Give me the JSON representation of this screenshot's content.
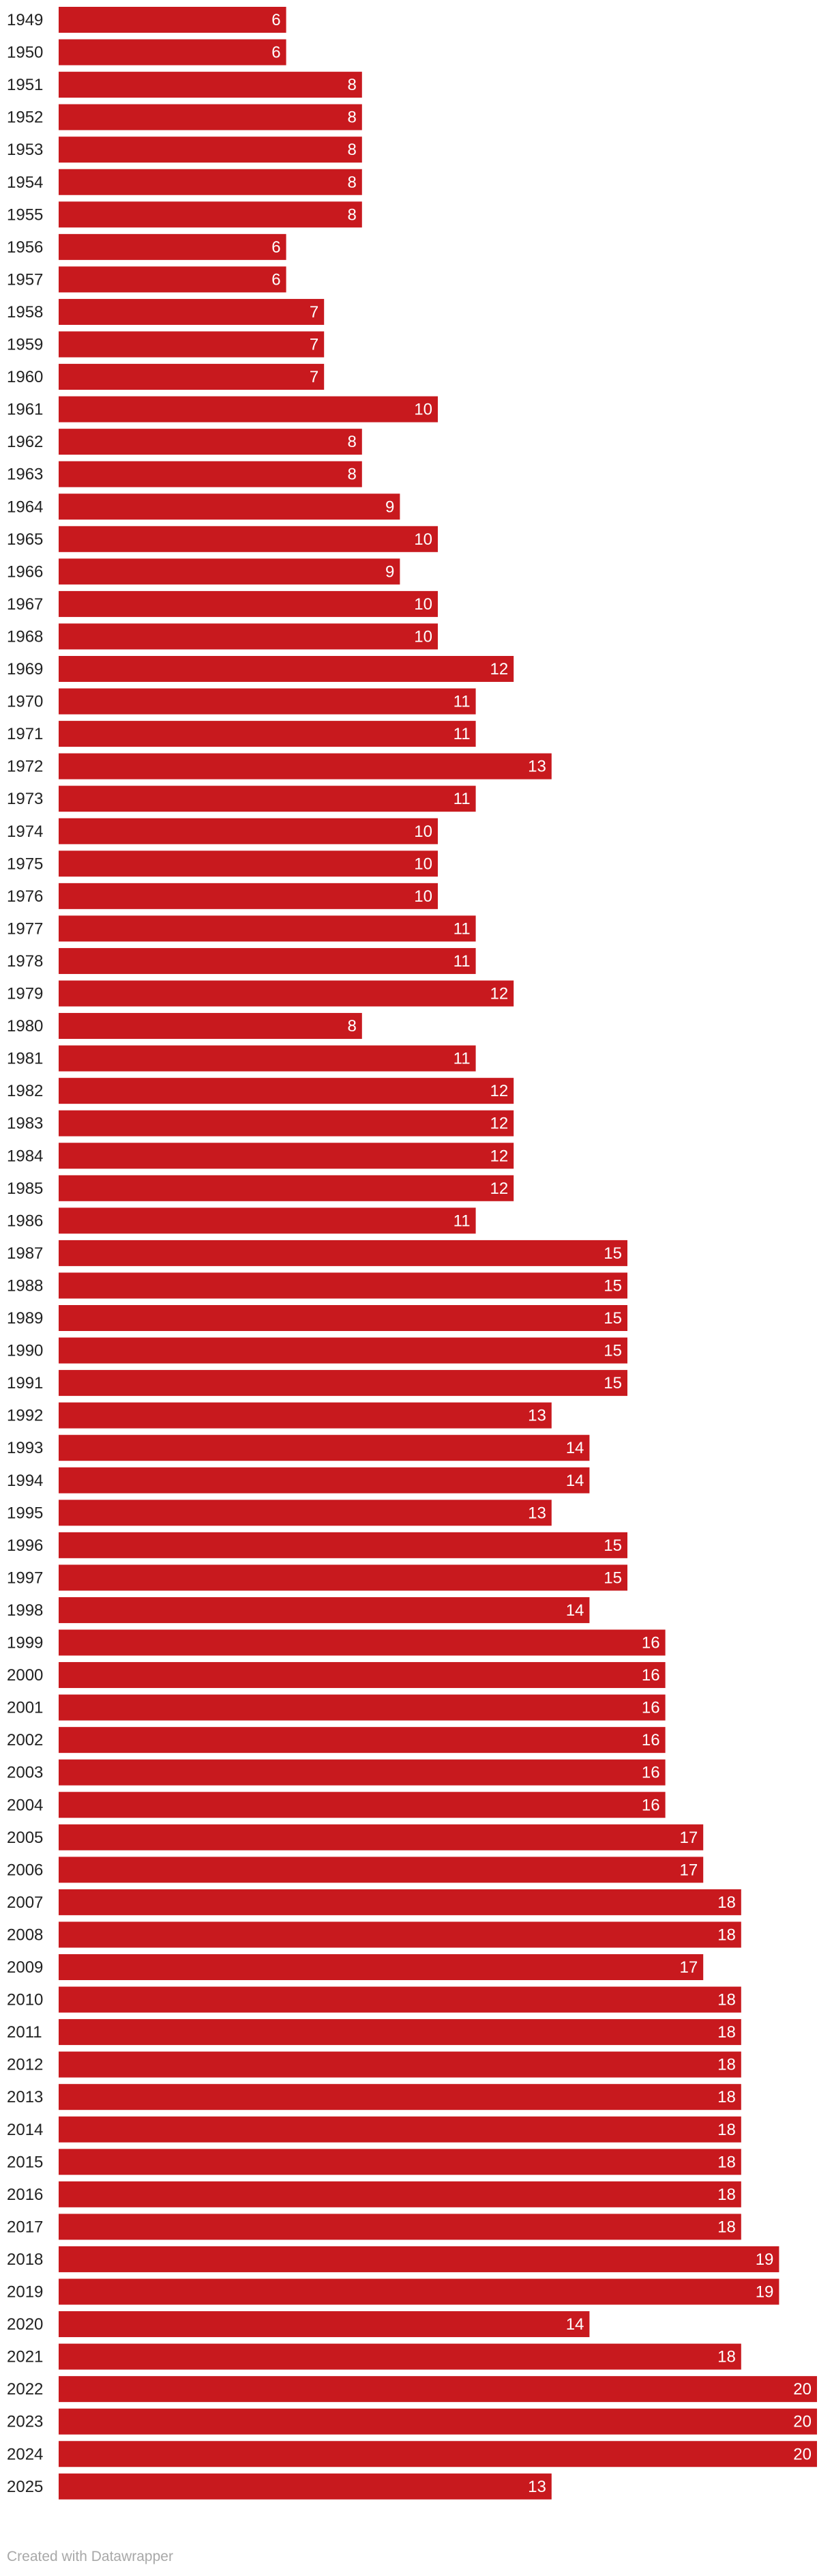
{
  "footer": {
    "credit": "Created with Datawrapper"
  },
  "colors": {
    "bar": "#c8191e",
    "bar_label": "#ffffff",
    "year_label": "#222222",
    "credit": "#a8a8a8"
  },
  "chart_data": {
    "type": "bar",
    "orientation": "horizontal",
    "title": "",
    "xlabel": "",
    "ylabel": "",
    "xlim": [
      0,
      20
    ],
    "grid": false,
    "categories": [
      "1949",
      "1950",
      "1951",
      "1952",
      "1953",
      "1954",
      "1955",
      "1956",
      "1957",
      "1958",
      "1959",
      "1960",
      "1961",
      "1962",
      "1963",
      "1964",
      "1965",
      "1966",
      "1967",
      "1968",
      "1969",
      "1970",
      "1971",
      "1972",
      "1973",
      "1974",
      "1975",
      "1976",
      "1977",
      "1978",
      "1979",
      "1980",
      "1981",
      "1982",
      "1983",
      "1984",
      "1985",
      "1986",
      "1987",
      "1988",
      "1989",
      "1990",
      "1991",
      "1992",
      "1993",
      "1994",
      "1995",
      "1996",
      "1997",
      "1998",
      "1999",
      "2000",
      "2001",
      "2002",
      "2003",
      "2004",
      "2005",
      "2006",
      "2007",
      "2008",
      "2009",
      "2010",
      "2011",
      "2012",
      "2013",
      "2014",
      "2015",
      "2016",
      "2017",
      "2018",
      "2019",
      "2020",
      "2021",
      "2022",
      "2023",
      "2024",
      "2025"
    ],
    "values": [
      6,
      6,
      8,
      8,
      8,
      8,
      8,
      6,
      6,
      7,
      7,
      7,
      10,
      8,
      8,
      9,
      10,
      9,
      10,
      10,
      12,
      11,
      11,
      13,
      11,
      10,
      10,
      10,
      11,
      11,
      12,
      8,
      11,
      12,
      12,
      12,
      12,
      11,
      15,
      15,
      15,
      15,
      15,
      13,
      14,
      14,
      13,
      15,
      15,
      14,
      16,
      16,
      16,
      16,
      16,
      16,
      17,
      17,
      18,
      18,
      17,
      18,
      18,
      18,
      18,
      18,
      18,
      18,
      18,
      19,
      19,
      14,
      18,
      20,
      20,
      20,
      13
    ]
  }
}
